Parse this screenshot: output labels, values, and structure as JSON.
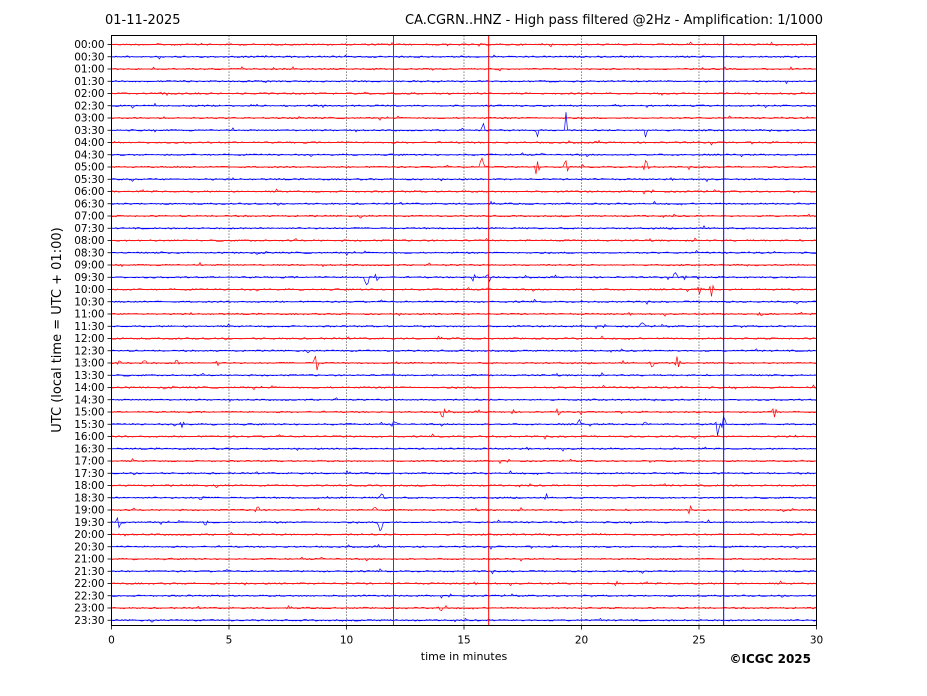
{
  "header": {
    "date": "01-11-2025",
    "title": "CA.CGRN..HNZ - High pass filtered @2Hz - Amplification: 1/1000"
  },
  "footer": {
    "copyright": "©ICGC 2025"
  },
  "colors": {
    "red": "#ff0000",
    "blue": "#0000ff"
  },
  "chart_data": {
    "type": "line",
    "xlabel": "time in minutes",
    "ylabel": "UTC (local time = UTC + 01:00)",
    "xlim": [
      0,
      30
    ],
    "xticks": [
      0,
      5,
      10,
      15,
      20,
      25,
      30
    ],
    "grid": "vertical dotted lines at 5-minute intervals",
    "rows": [
      "00:00",
      "00:30",
      "01:00",
      "01:30",
      "02:00",
      "02:30",
      "03:00",
      "03:30",
      "04:00",
      "04:30",
      "05:00",
      "05:30",
      "06:00",
      "06:30",
      "07:00",
      "07:30",
      "08:00",
      "08:30",
      "09:00",
      "09:30",
      "10:00",
      "10:30",
      "11:00",
      "11:30",
      "12:00",
      "12:30",
      "13:00",
      "13:30",
      "14:00",
      "14:30",
      "15:00",
      "15:30",
      "16:00",
      "16:30",
      "17:00",
      "17:30",
      "18:00",
      "18:30",
      "19:00",
      "19:30",
      "20:00",
      "20:30",
      "21:00",
      "21:30",
      "22:00",
      "22:30",
      "23:00",
      "23:30"
    ],
    "row_colors": [
      "red",
      "blue"
    ],
    "vertical_lines": [
      {
        "x": 12.0,
        "color": "red"
      },
      {
        "x": 16.05,
        "color": "red"
      },
      {
        "x": 26.05,
        "color": "blue"
      }
    ],
    "spikes": [
      {
        "row": 7,
        "x": 15.8,
        "amp": 2.4
      },
      {
        "row": 7,
        "x": 18.1,
        "amp": 2.2
      },
      {
        "row": 7,
        "x": 19.35,
        "amp": 2.2
      },
      {
        "row": 7,
        "x": 22.75,
        "amp": 2.4
      },
      {
        "row": 10,
        "x": 15.75,
        "amp": 1.2
      },
      {
        "row": 10,
        "x": 18.1,
        "amp": 1.0
      },
      {
        "row": 10,
        "x": 19.35,
        "amp": 1.0
      },
      {
        "row": 10,
        "x": 22.75,
        "amp": 1.0
      },
      {
        "row": 19,
        "x": 10.85,
        "amp": 1.0
      },
      {
        "row": 19,
        "x": 11.3,
        "amp": 0.4
      },
      {
        "row": 19,
        "x": 15.4,
        "amp": 0.4
      },
      {
        "row": 19,
        "x": 16.05,
        "amp": 0.5
      },
      {
        "row": 19,
        "x": 24.0,
        "amp": 0.5
      },
      {
        "row": 19,
        "x": 24.4,
        "amp": 0.4
      },
      {
        "row": 20,
        "x": 25.0,
        "amp": 0.6
      },
      {
        "row": 20,
        "x": 25.55,
        "amp": 0.7
      },
      {
        "row": 22,
        "x": 27.6,
        "amp": 0.3
      },
      {
        "row": 23,
        "x": 22.6,
        "amp": 0.4
      },
      {
        "row": 26,
        "x": 0.35,
        "amp": 0.3
      },
      {
        "row": 26,
        "x": 1.4,
        "amp": 0.3
      },
      {
        "row": 26,
        "x": 2.8,
        "amp": 0.4
      },
      {
        "row": 26,
        "x": 4.5,
        "amp": 0.4
      },
      {
        "row": 26,
        "x": 8.7,
        "amp": 0.9
      },
      {
        "row": 26,
        "x": 23.0,
        "amp": 0.4
      },
      {
        "row": 26,
        "x": 24.1,
        "amp": 0.8
      },
      {
        "row": 30,
        "x": 14.1,
        "amp": 0.6
      },
      {
        "row": 30,
        "x": 17.1,
        "amp": 0.4
      },
      {
        "row": 30,
        "x": 19.0,
        "amp": 0.4
      },
      {
        "row": 30,
        "x": 28.2,
        "amp": 0.6
      },
      {
        "row": 31,
        "x": 3.0,
        "amp": 0.4
      },
      {
        "row": 31,
        "x": 12.0,
        "amp": 0.3
      },
      {
        "row": 31,
        "x": 19.9,
        "amp": 0.5
      },
      {
        "row": 31,
        "x": 22.7,
        "amp": 0.4
      },
      {
        "row": 31,
        "x": 25.8,
        "amp": 1.1
      },
      {
        "row": 31,
        "x": 26.05,
        "amp": 0.7
      },
      {
        "row": 37,
        "x": 3.8,
        "amp": 0.3
      },
      {
        "row": 37,
        "x": 11.5,
        "amp": 0.4
      },
      {
        "row": 37,
        "x": 18.5,
        "amp": 0.3
      },
      {
        "row": 38,
        "x": 6.2,
        "amp": 0.4
      },
      {
        "row": 38,
        "x": 11.2,
        "amp": 0.4
      },
      {
        "row": 38,
        "x": 24.6,
        "amp": 0.4
      },
      {
        "row": 39,
        "x": 0.3,
        "amp": 0.5
      },
      {
        "row": 39,
        "x": 4.0,
        "amp": 0.4
      },
      {
        "row": 39,
        "x": 11.45,
        "amp": 1.2
      },
      {
        "row": 44,
        "x": 21.5,
        "amp": 0.3
      },
      {
        "row": 46,
        "x": 14.0,
        "amp": 0.4
      }
    ]
  }
}
